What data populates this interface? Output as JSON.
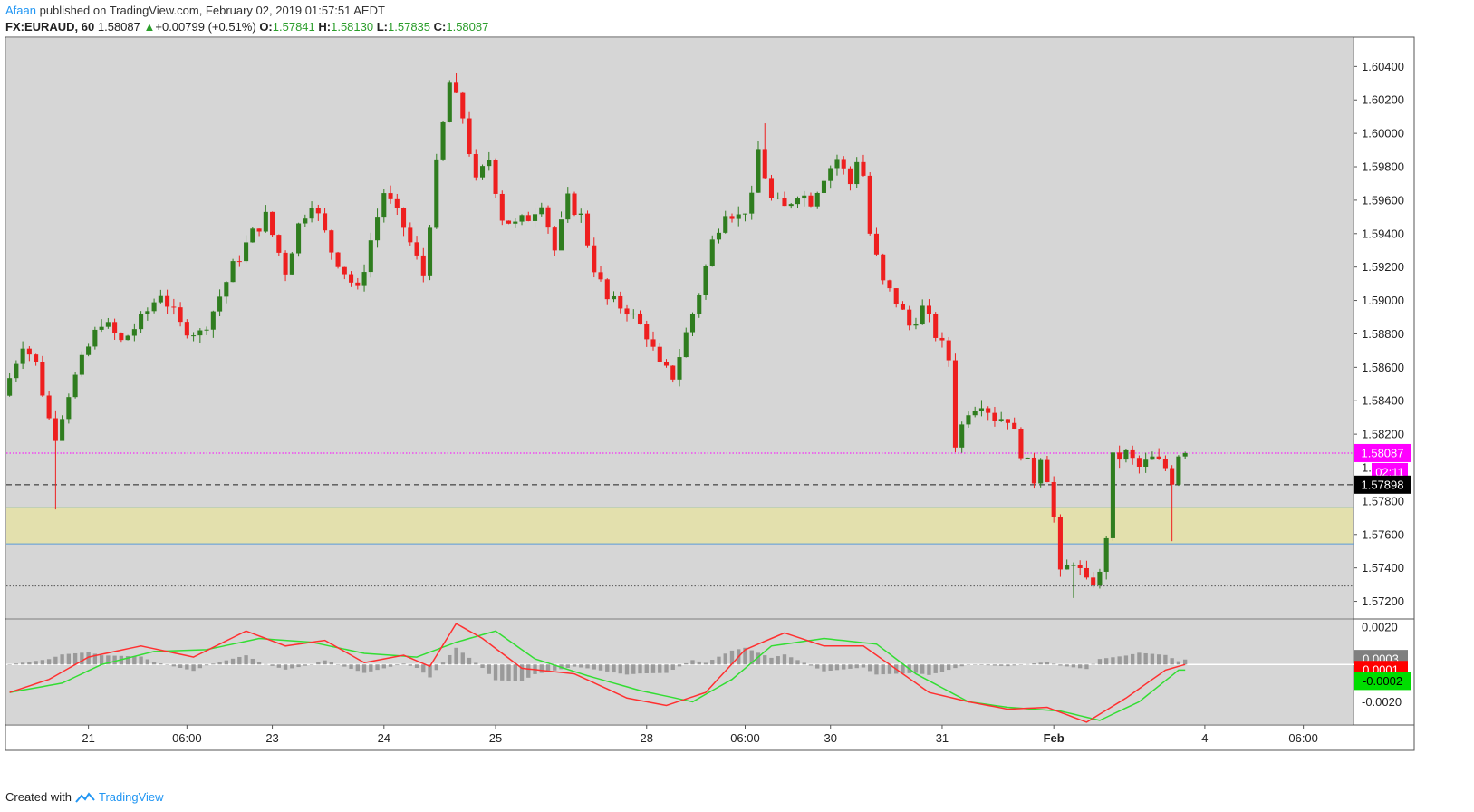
{
  "header": {
    "author": "Afaan",
    "published": " published on TradingView.com, February 02, 2019 01:57:51 AEDT",
    "symbol": "FX:EURAUD, 60",
    "last": "1.58087",
    "change": "+0.00799 (+0.51%)",
    "o_label": "O:",
    "o_val": "1.57841",
    "h_label": "H:",
    "h_val": "1.58130",
    "l_label": "L:",
    "l_val": "1.57835",
    "c_label": "C:",
    "c_val": "1.58087"
  },
  "footer": {
    "created": "Created with",
    "brand": "TradingView"
  },
  "colors": {
    "up": "#2f7d1f",
    "down": "#ee1f1f",
    "bg": "#d6d6d6",
    "zone": "#e3e0ad",
    "price_label": "#ff00ff",
    "macd": "#ff3030",
    "signal": "#33dd33",
    "hist": "#9a9a9a"
  },
  "chart_data": {
    "type": "candlestick",
    "symbol": "FX:EURAUD",
    "interval": "60",
    "price_axis": {
      "range": [
        1.571,
        1.6057
      ],
      "ticks": [
        "1.60400",
        "1.60200",
        "1.60000",
        "1.59800",
        "1.59600",
        "1.59400",
        "1.59200",
        "1.59000",
        "1.58800",
        "1.58600",
        "1.58400",
        "1.58200",
        "1.57600",
        "1.57400",
        "1.57200"
      ]
    },
    "time_axis": {
      "ticks": [
        {
          "label": "21",
          "bar": 12
        },
        {
          "label": "06:00",
          "bar": 27
        },
        {
          "label": "23",
          "bar": 40
        },
        {
          "label": "24",
          "bar": 57
        },
        {
          "label": "25",
          "bar": 74
        },
        {
          "label": "28",
          "bar": 97
        },
        {
          "label": "06:00",
          "bar": 112
        },
        {
          "label": "30",
          "bar": 125
        },
        {
          "label": "31",
          "bar": 142
        },
        {
          "label": "Feb",
          "bar": 159,
          "bold": true
        },
        {
          "label": "4",
          "bar": 182
        },
        {
          "label": "06:00",
          "bar": 197
        }
      ],
      "total_slots": 205
    },
    "anchors": [
      [
        0,
        1.5843
      ],
      [
        3,
        1.5875
      ],
      [
        5,
        1.5862
      ],
      [
        7,
        1.5829
      ],
      [
        8,
        1.582
      ],
      [
        10,
        1.5845
      ],
      [
        13,
        1.5872
      ],
      [
        15,
        1.5888
      ],
      [
        18,
        1.5875
      ],
      [
        21,
        1.5888
      ],
      [
        24,
        1.5905
      ],
      [
        27,
        1.5885
      ],
      [
        30,
        1.588
      ],
      [
        32,
        1.5894
      ],
      [
        35,
        1.592
      ],
      [
        38,
        1.594
      ],
      [
        40,
        1.595
      ],
      [
        43,
        1.5918
      ],
      [
        45,
        1.5945
      ],
      [
        47,
        1.596
      ],
      [
        50,
        1.593
      ],
      [
        54,
        1.5905
      ],
      [
        56,
        1.5936
      ],
      [
        58,
        1.5965
      ],
      [
        61,
        1.5944
      ],
      [
        64,
        1.5915
      ],
      [
        66,
        1.598
      ],
      [
        68,
        1.603
      ],
      [
        70,
        1.601
      ],
      [
        72,
        1.597
      ],
      [
        74,
        1.5985
      ],
      [
        76,
        1.595
      ],
      [
        78,
        1.5945
      ],
      [
        80,
        1.595
      ],
      [
        82,
        1.596
      ],
      [
        84,
        1.593
      ],
      [
        86,
        1.596
      ],
      [
        88,
        1.595
      ],
      [
        90,
        1.592
      ],
      [
        92,
        1.59
      ],
      [
        95,
        1.5895
      ],
      [
        98,
        1.588
      ],
      [
        100,
        1.586
      ],
      [
        102,
        1.5855
      ],
      [
        104,
        1.588
      ],
      [
        106,
        1.5905
      ],
      [
        108,
        1.5935
      ],
      [
        110,
        1.5955
      ],
      [
        112,
        1.595
      ],
      [
        114,
        1.596
      ],
      [
        115,
        1.599
      ],
      [
        117,
        1.596
      ],
      [
        119,
        1.5955
      ],
      [
        121,
        1.5965
      ],
      [
        123,
        1.596
      ],
      [
        125,
        1.5975
      ],
      [
        127,
        1.5985
      ],
      [
        129,
        1.597
      ],
      [
        130,
        1.5985
      ],
      [
        131,
        1.5975
      ],
      [
        132,
        1.594
      ],
      [
        134,
        1.591
      ],
      [
        136,
        1.59
      ],
      [
        138,
        1.5885
      ],
      [
        140,
        1.5895
      ],
      [
        142,
        1.588
      ],
      [
        144,
        1.5865
      ],
      [
        145,
        1.5815
      ],
      [
        147,
        1.5835
      ],
      [
        149,
        1.584
      ],
      [
        151,
        1.583
      ],
      [
        153,
        1.583
      ],
      [
        155,
        1.581
      ],
      [
        157,
        1.5793
      ],
      [
        158,
        1.5808
      ],
      [
        159,
        1.5795
      ],
      [
        160,
        1.577
      ],
      [
        161,
        1.5735
      ],
      [
        163,
        1.5745
      ],
      [
        165,
        1.573
      ],
      [
        167,
        1.5735
      ],
      [
        168,
        1.576
      ],
      [
        169,
        1.5805
      ],
      [
        171,
        1.5808
      ],
      [
        173,
        1.58
      ],
      [
        175,
        1.5805
      ],
      [
        177,
        1.58
      ],
      [
        178,
        1.5793
      ],
      [
        179,
        1.5809
      ]
    ],
    "spikes": [
      [
        7,
        1.5775,
        "low"
      ],
      [
        8,
        1.582,
        "low"
      ],
      [
        68,
        1.6036,
        "high"
      ],
      [
        84,
        1.595,
        "low"
      ],
      [
        115,
        1.6006,
        "high"
      ],
      [
        177,
        1.5756,
        "low"
      ],
      [
        162,
        1.5722,
        "low"
      ]
    ],
    "levels": [
      {
        "name": "current-price",
        "price": 1.58087,
        "style": "dotted",
        "color": "#ff00ff",
        "label": "1.58087"
      },
      {
        "name": "crosshair",
        "price": 1.57898,
        "style": "dashed",
        "color": "#222222",
        "label": "1.57898"
      },
      {
        "name": "zone-top",
        "price": 1.57763,
        "style": "solid",
        "color": "#5b9bd5"
      },
      {
        "name": "zone-bottom",
        "price": 1.57544,
        "style": "solid",
        "color": "#5b9bd5"
      },
      {
        "name": "support",
        "price": 1.57292,
        "style": "dotted",
        "color": "#555555"
      }
    ],
    "zone": {
      "top": 1.57763,
      "bottom": 1.57544
    },
    "countdown": "02:11",
    "last_price_label": "1.58087",
    "crosshair_label": "1.57898",
    "partial_tick_a": "1.",
    "partial_tick_b": "1.57800",
    "macd": {
      "axis_ticks": [
        "0.0020",
        "-0.0020"
      ],
      "range": [
        -0.0032,
        0.0024
      ],
      "hist_label": "0.0003",
      "macd_label": "0.0001",
      "signal_label": "-0.0002",
      "macd_anchors": [
        [
          0,
          -0.0015
        ],
        [
          6,
          -0.0008
        ],
        [
          12,
          0.0004
        ],
        [
          20,
          0.001
        ],
        [
          28,
          0.0004
        ],
        [
          36,
          0.0018
        ],
        [
          42,
          0.001
        ],
        [
          48,
          0.0013
        ],
        [
          54,
          0.0001
        ],
        [
          60,
          0.0005
        ],
        [
          64,
          -0.0001
        ],
        [
          68,
          0.0022
        ],
        [
          72,
          0.0014
        ],
        [
          78,
          -0.0002
        ],
        [
          86,
          -0.0005
        ],
        [
          94,
          -0.0018
        ],
        [
          100,
          -0.0022
        ],
        [
          106,
          -0.0015
        ],
        [
          112,
          0.0008
        ],
        [
          118,
          0.0017
        ],
        [
          124,
          0.001
        ],
        [
          130,
          0.001
        ],
        [
          134,
          0.0
        ],
        [
          140,
          -0.0015
        ],
        [
          146,
          -0.002
        ],
        [
          152,
          -0.0024
        ],
        [
          158,
          -0.0023
        ],
        [
          164,
          -0.0031
        ],
        [
          170,
          -0.0018
        ],
        [
          176,
          -0.0003
        ],
        [
          179,
          0.0
        ]
      ],
      "signal_anchors": [
        [
          0,
          -0.0015
        ],
        [
          8,
          -0.001
        ],
        [
          14,
          0.0
        ],
        [
          22,
          0.0007
        ],
        [
          30,
          0.0008
        ],
        [
          38,
          0.0014
        ],
        [
          46,
          0.0012
        ],
        [
          54,
          0.0006
        ],
        [
          62,
          0.0004
        ],
        [
          68,
          0.0012
        ],
        [
          74,
          0.0018
        ],
        [
          80,
          0.0003
        ],
        [
          88,
          -0.0006
        ],
        [
          96,
          -0.0014
        ],
        [
          104,
          -0.002
        ],
        [
          110,
          -0.0008
        ],
        [
          116,
          0.001
        ],
        [
          124,
          0.0014
        ],
        [
          132,
          0.0011
        ],
        [
          138,
          -0.0005
        ],
        [
          146,
          -0.002
        ],
        [
          152,
          -0.0023
        ],
        [
          160,
          -0.0025
        ],
        [
          166,
          -0.003
        ],
        [
          172,
          -0.002
        ],
        [
          178,
          -0.0003
        ]
      ]
    }
  }
}
